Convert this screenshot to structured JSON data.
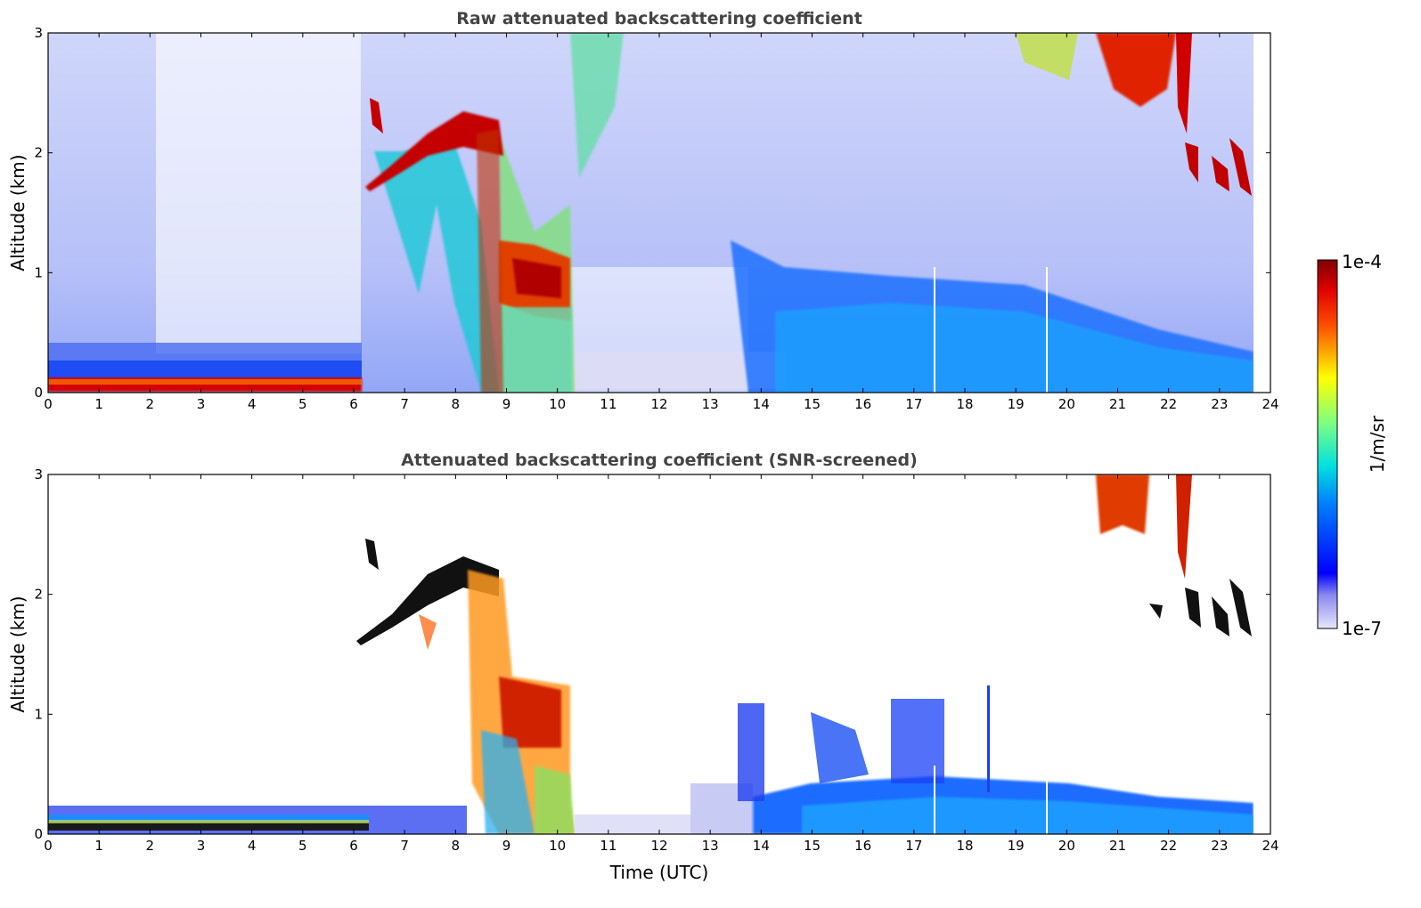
{
  "chart_data": [
    {
      "type": "heatmap",
      "title": "Raw attenuated backscattering coefficient",
      "xlabel": "",
      "ylabel": "Altitude (km)",
      "xlim": [
        0,
        24
      ],
      "ylim": [
        0,
        3
      ],
      "xticks": [
        "0",
        "1",
        "2",
        "3",
        "4",
        "5",
        "6",
        "7",
        "8",
        "9",
        "10",
        "11",
        "12",
        "13",
        "14",
        "15",
        "16",
        "17",
        "18",
        "19",
        "20",
        "21",
        "22",
        "23",
        "24"
      ],
      "yticks": [
        "0",
        "1",
        "2",
        "3"
      ],
      "colorscale": "jet, logarithmic",
      "features": [
        {
          "kind": "surface-layer",
          "t": [
            0,
            6.3
          ],
          "alt": [
            0,
            0.1
          ],
          "level": "high"
        },
        {
          "kind": "boundary-layer",
          "t": [
            0,
            6.3
          ],
          "alt": [
            0,
            0.3
          ],
          "level": "low"
        },
        {
          "kind": "cloud-layer",
          "t": [
            6.2,
            9.0
          ],
          "alt": [
            1.6,
            2.4
          ],
          "level": "high"
        },
        {
          "kind": "cloud-fall-streaks",
          "t": [
            6.5,
            10.3
          ],
          "alt": [
            0,
            2.2
          ],
          "level": "mid"
        },
        {
          "kind": "low-cloud",
          "t": [
            9.0,
            10.3
          ],
          "alt": [
            0.5,
            1.2
          ],
          "level": "high"
        },
        {
          "kind": "aerosol-layer",
          "t": [
            13.5,
            23.6
          ],
          "alt": [
            0,
            1.2
          ],
          "level": "low"
        },
        {
          "kind": "high-cloud",
          "t": [
            19.0,
            22.6
          ],
          "alt": [
            2.0,
            3.0
          ],
          "level": "high"
        },
        {
          "kind": "mid-cloud-fragments",
          "t": [
            21.5,
            23.6
          ],
          "alt": [
            1.6,
            2.2
          ],
          "level": "high"
        }
      ]
    },
    {
      "type": "heatmap",
      "title": "Attenuated backscattering coefficient (SNR-screened)",
      "xlabel": "Time (UTC)",
      "ylabel": "Altitude (km)",
      "xlim": [
        0,
        24
      ],
      "ylim": [
        0,
        3
      ],
      "xticks": [
        "0",
        "1",
        "2",
        "3",
        "4",
        "5",
        "6",
        "7",
        "8",
        "9",
        "10",
        "11",
        "12",
        "13",
        "14",
        "15",
        "16",
        "17",
        "18",
        "19",
        "20",
        "21",
        "22",
        "23",
        "24"
      ],
      "yticks": [
        "0",
        "1",
        "2",
        "3"
      ],
      "colorscale": "jet, logarithmic",
      "features": [
        {
          "kind": "surface-layer",
          "t": [
            0,
            6.3
          ],
          "alt": [
            0,
            0.1
          ],
          "level": "saturated"
        },
        {
          "kind": "boundary-layer",
          "t": [
            0,
            8.5
          ],
          "alt": [
            0,
            0.25
          ],
          "level": "low"
        },
        {
          "kind": "cloud-layer",
          "t": [
            6.0,
            9.0
          ],
          "alt": [
            1.6,
            2.4
          ],
          "level": "saturated"
        },
        {
          "kind": "low-cloud",
          "t": [
            8.5,
            10.3
          ],
          "alt": [
            0,
            1.2
          ],
          "level": "high"
        },
        {
          "kind": "aerosol-layer",
          "t": [
            14.0,
            23.6
          ],
          "alt": [
            0,
            0.45
          ],
          "level": "low"
        },
        {
          "kind": "high-cloud",
          "t": [
            20.6,
            22.5
          ],
          "alt": [
            2.2,
            3.0
          ],
          "level": "high"
        },
        {
          "kind": "mid-cloud-fragments",
          "t": [
            21.5,
            23.6
          ],
          "alt": [
            1.6,
            2.2
          ],
          "level": "saturated"
        }
      ]
    }
  ],
  "colorbar": {
    "label": "1/m/sr",
    "max_label": "1e-4",
    "min_label": "1e-7",
    "min": 1e-07,
    "max": 0.0001,
    "scale": "log"
  }
}
